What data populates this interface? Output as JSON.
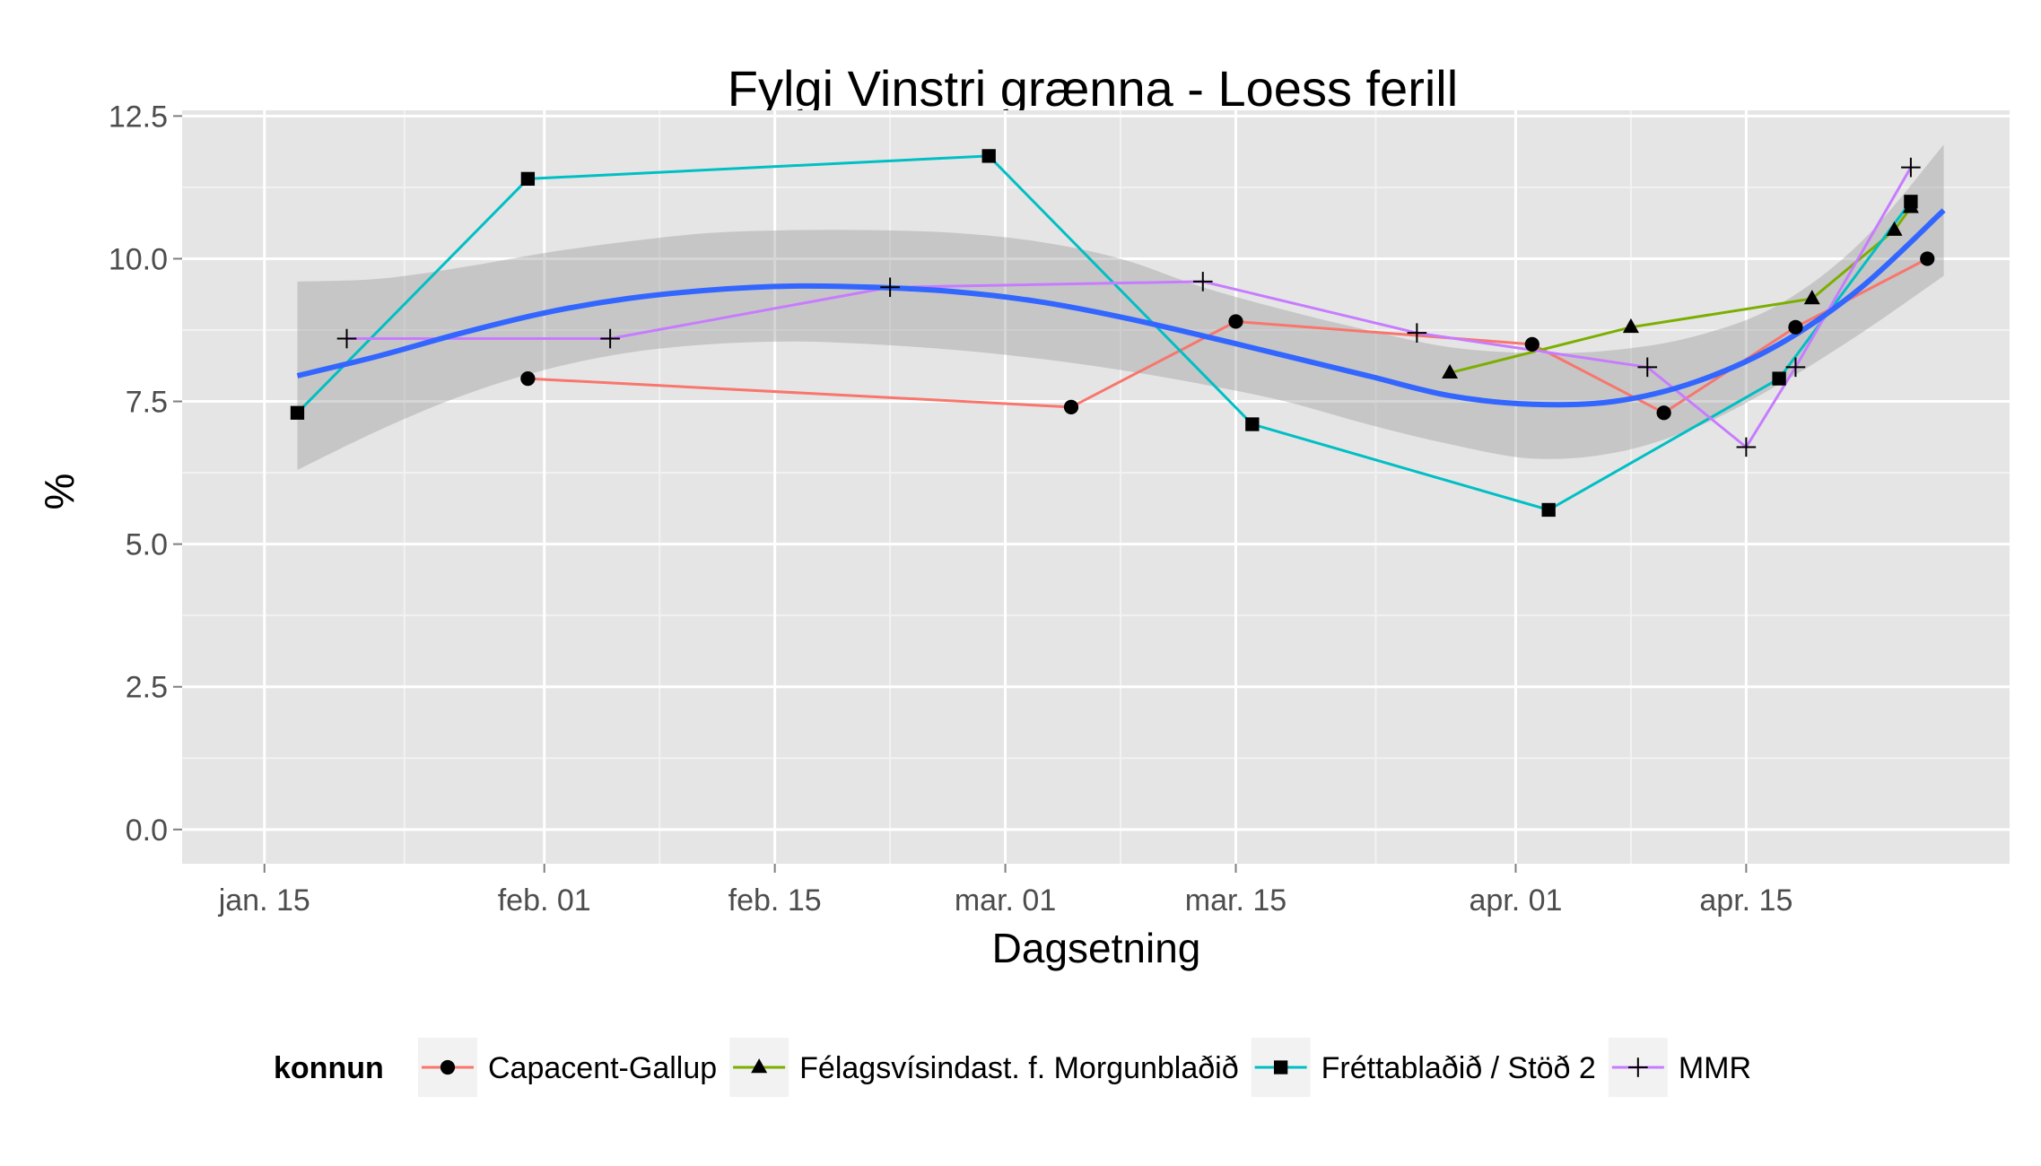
{
  "chart_data": {
    "type": "line",
    "title": "Fylgi Vinstri grænna - Loess ferill",
    "xlabel": "Dagsetning",
    "ylabel": "%",
    "x_axis": {
      "type": "date",
      "range": [
        "2013-01-10",
        "2013-05-01"
      ],
      "ticks": [
        {
          "date": "2013-01-15",
          "label": "jan. 15"
        },
        {
          "date": "2013-02-01",
          "label": "feb. 01"
        },
        {
          "date": "2013-02-15",
          "label": "feb. 15"
        },
        {
          "date": "2013-03-01",
          "label": "mar. 01"
        },
        {
          "date": "2013-03-15",
          "label": "mar. 15"
        },
        {
          "date": "2013-04-01",
          "label": "apr. 01"
        },
        {
          "date": "2013-04-15",
          "label": "apr. 15"
        }
      ]
    },
    "y_axis": {
      "range": [
        -0.6,
        12.6
      ],
      "ticks": [
        0,
        2.5,
        5,
        7.5,
        10,
        12.5
      ],
      "tick_labels": [
        "0.0",
        "2.5",
        "5.0",
        "7.5",
        "10.0",
        "12.5"
      ]
    },
    "grid": true,
    "legend": {
      "title": "konnun",
      "position": "bottom"
    },
    "series": [
      {
        "name": "Capacent-Gallup",
        "color": "#F8766D",
        "marker": "circle",
        "points": [
          {
            "x": "2013-01-31",
            "y": 7.9
          },
          {
            "x": "2013-03-05",
            "y": 7.4
          },
          {
            "x": "2013-03-15",
            "y": 8.9
          },
          {
            "x": "2013-04-02",
            "y": 8.5
          },
          {
            "x": "2013-04-10",
            "y": 7.3
          },
          {
            "x": "2013-04-18",
            "y": 8.8
          },
          {
            "x": "2013-04-26",
            "y": 10.0
          }
        ]
      },
      {
        "name": "Félagsvísindast. f. Morgunblaðið",
        "color": "#7CAE00",
        "marker": "triangle",
        "points": [
          {
            "x": "2013-03-28",
            "y": 8.0
          },
          {
            "x": "2013-04-08",
            "y": 8.8
          },
          {
            "x": "2013-04-19",
            "y": 9.3
          },
          {
            "x": "2013-04-24",
            "y": 10.5
          },
          {
            "x": "2013-04-25",
            "y": 10.9
          }
        ]
      },
      {
        "name": "Fréttablaðið / Stöð 2",
        "color": "#00BFC4",
        "marker": "square",
        "points": [
          {
            "x": "2013-01-17",
            "y": 7.3
          },
          {
            "x": "2013-01-31",
            "y": 11.4
          },
          {
            "x": "2013-02-28",
            "y": 11.8
          },
          {
            "x": "2013-03-16",
            "y": 7.1
          },
          {
            "x": "2013-04-03",
            "y": 5.6
          },
          {
            "x": "2013-04-17",
            "y": 7.9
          },
          {
            "x": "2013-04-25",
            "y": 11.0
          }
        ]
      },
      {
        "name": "MMR",
        "color": "#C77CFF",
        "marker": "plus",
        "points": [
          {
            "x": "2013-01-20",
            "y": 8.6
          },
          {
            "x": "2013-02-05",
            "y": 8.6
          },
          {
            "x": "2013-02-22",
            "y": 9.5
          },
          {
            "x": "2013-03-13",
            "y": 9.6
          },
          {
            "x": "2013-03-26",
            "y": 8.7
          },
          {
            "x": "2013-04-09",
            "y": 8.1
          },
          {
            "x": "2013-04-15",
            "y": 6.7
          },
          {
            "x": "2013-04-18",
            "y": 8.1
          },
          {
            "x": "2013-04-25",
            "y": 11.6
          }
        ]
      }
    ],
    "loess": {
      "color": "#3366FF",
      "band_color": "#999999",
      "points": [
        {
          "x": "2013-01-17",
          "y": 7.95,
          "lo": 6.3,
          "hi": 9.6
        },
        {
          "x": "2013-01-22",
          "y": 8.3,
          "lo": 7.0,
          "hi": 9.65
        },
        {
          "x": "2013-01-27",
          "y": 8.7,
          "lo": 7.6,
          "hi": 9.85
        },
        {
          "x": "2013-02-01",
          "y": 9.05,
          "lo": 8.05,
          "hi": 10.1
        },
        {
          "x": "2013-02-06",
          "y": 9.3,
          "lo": 8.35,
          "hi": 10.3
        },
        {
          "x": "2013-02-11",
          "y": 9.45,
          "lo": 8.5,
          "hi": 10.45
        },
        {
          "x": "2013-02-16",
          "y": 9.52,
          "lo": 8.55,
          "hi": 10.5
        },
        {
          "x": "2013-02-21",
          "y": 9.5,
          "lo": 8.5,
          "hi": 10.5
        },
        {
          "x": "2013-02-26",
          "y": 9.42,
          "lo": 8.4,
          "hi": 10.45
        },
        {
          "x": "2013-03-03",
          "y": 9.25,
          "lo": 8.25,
          "hi": 10.3
        },
        {
          "x": "2013-03-08",
          "y": 8.98,
          "lo": 8.05,
          "hi": 10.0
        },
        {
          "x": "2013-03-13",
          "y": 8.65,
          "lo": 7.8,
          "hi": 9.5
        },
        {
          "x": "2013-03-18",
          "y": 8.3,
          "lo": 7.5,
          "hi": 9.1
        },
        {
          "x": "2013-03-23",
          "y": 7.95,
          "lo": 7.1,
          "hi": 8.75
        },
        {
          "x": "2013-03-28",
          "y": 7.6,
          "lo": 6.75,
          "hi": 8.45
        },
        {
          "x": "2013-04-02",
          "y": 7.45,
          "lo": 6.5,
          "hi": 8.35
        },
        {
          "x": "2013-04-07",
          "y": 7.5,
          "lo": 6.6,
          "hi": 8.4
        },
        {
          "x": "2013-04-12",
          "y": 7.85,
          "lo": 7.05,
          "hi": 8.65
        },
        {
          "x": "2013-04-17",
          "y": 8.5,
          "lo": 7.8,
          "hi": 9.2
        },
        {
          "x": "2013-04-22",
          "y": 9.5,
          "lo": 8.7,
          "hi": 10.3
        },
        {
          "x": "2013-04-27",
          "y": 10.85,
          "lo": 9.7,
          "hi": 12.0
        }
      ]
    }
  }
}
